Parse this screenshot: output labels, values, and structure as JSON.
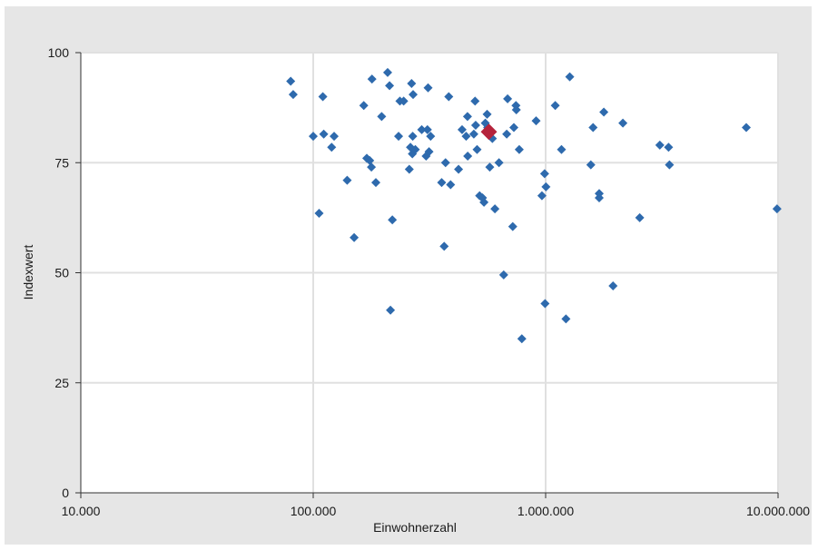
{
  "chart_data": {
    "type": "scatter",
    "title": "",
    "xlabel": "Einwohnerzahl",
    "ylabel": "Indexwert",
    "x_scale": "log",
    "xlim": [
      10000,
      10000000
    ],
    "ylim": [
      0,
      100
    ],
    "x_ticks": [
      10000,
      100000,
      1000000,
      10000000
    ],
    "x_tick_labels": [
      "10.000",
      "100.000",
      "1.000.000",
      "10.000.000"
    ],
    "y_ticks": [
      0,
      25,
      50,
      75,
      100
    ],
    "y_tick_labels": [
      "0",
      "25",
      "50",
      "75",
      "100"
    ],
    "grid": true,
    "colors": {
      "points": "#2e6aad",
      "highlight": "#b5233b",
      "grid": "#e0e0e0",
      "frame": "#e6e6e6"
    },
    "highlight": {
      "x": 570000,
      "y": 82
    },
    "points": [
      [
        80000,
        93.5
      ],
      [
        82000,
        90.5
      ],
      [
        100000,
        81
      ],
      [
        106000,
        63.5
      ],
      [
        110000,
        90
      ],
      [
        111000,
        81.5
      ],
      [
        120000,
        78.5
      ],
      [
        123000,
        81
      ],
      [
        140000,
        71
      ],
      [
        150000,
        58
      ],
      [
        165000,
        88
      ],
      [
        170000,
        76
      ],
      [
        175000,
        75.5
      ],
      [
        178000,
        74
      ],
      [
        179000,
        94
      ],
      [
        186000,
        70.5
      ],
      [
        197000,
        85.5
      ],
      [
        209000,
        95.5
      ],
      [
        213000,
        92.5
      ],
      [
        215000,
        41.5
      ],
      [
        219000,
        62
      ],
      [
        233000,
        81
      ],
      [
        236000,
        89
      ],
      [
        245000,
        89
      ],
      [
        259000,
        73.5
      ],
      [
        262000,
        78.5
      ],
      [
        265000,
        93
      ],
      [
        267000,
        77
      ],
      [
        268000,
        81
      ],
      [
        269000,
        90.5
      ],
      [
        275000,
        78
      ],
      [
        293000,
        82.5
      ],
      [
        306000,
        76.5
      ],
      [
        310000,
        82.5
      ],
      [
        312000,
        92
      ],
      [
        315000,
        77.5
      ],
      [
        320000,
        81
      ],
      [
        357000,
        70.5
      ],
      [
        366000,
        56
      ],
      [
        371000,
        75
      ],
      [
        383000,
        90
      ],
      [
        390000,
        70
      ],
      [
        422000,
        73.5
      ],
      [
        437000,
        82.5
      ],
      [
        455000,
        81
      ],
      [
        461000,
        85.5
      ],
      [
        462000,
        76.5
      ],
      [
        491000,
        81.5
      ],
      [
        497000,
        89
      ],
      [
        500000,
        83.5
      ],
      [
        507000,
        78
      ],
      [
        520000,
        67.5
      ],
      [
        535000,
        67
      ],
      [
        543000,
        66
      ],
      [
        550000,
        84
      ],
      [
        560000,
        86
      ],
      [
        563000,
        83
      ],
      [
        575000,
        74
      ],
      [
        590000,
        80.5
      ],
      [
        605000,
        64.5
      ],
      [
        630000,
        75
      ],
      [
        660000,
        49.5
      ],
      [
        680000,
        81.5
      ],
      [
        686000,
        89.5
      ],
      [
        722000,
        60.5
      ],
      [
        730000,
        83
      ],
      [
        745000,
        88
      ],
      [
        748000,
        87
      ],
      [
        770000,
        78
      ],
      [
        790000,
        35
      ],
      [
        910000,
        84.5
      ],
      [
        964000,
        67.5
      ],
      [
        990000,
        72.5
      ],
      [
        994000,
        43
      ],
      [
        1003000,
        69.5
      ],
      [
        1100000,
        88
      ],
      [
        1170000,
        78
      ],
      [
        1223000,
        39.5
      ],
      [
        1270000,
        94.5
      ],
      [
        1565000,
        74.5
      ],
      [
        1600000,
        83
      ],
      [
        1700000,
        68
      ],
      [
        1700000,
        67
      ],
      [
        1780000,
        86.5
      ],
      [
        1950000,
        47
      ],
      [
        2150000,
        84
      ],
      [
        2540000,
        62.5
      ],
      [
        3100000,
        79
      ],
      [
        3380000,
        78.5
      ],
      [
        3410000,
        74.5
      ],
      [
        7300000,
        83
      ],
      [
        9900000,
        64.5
      ]
    ]
  }
}
